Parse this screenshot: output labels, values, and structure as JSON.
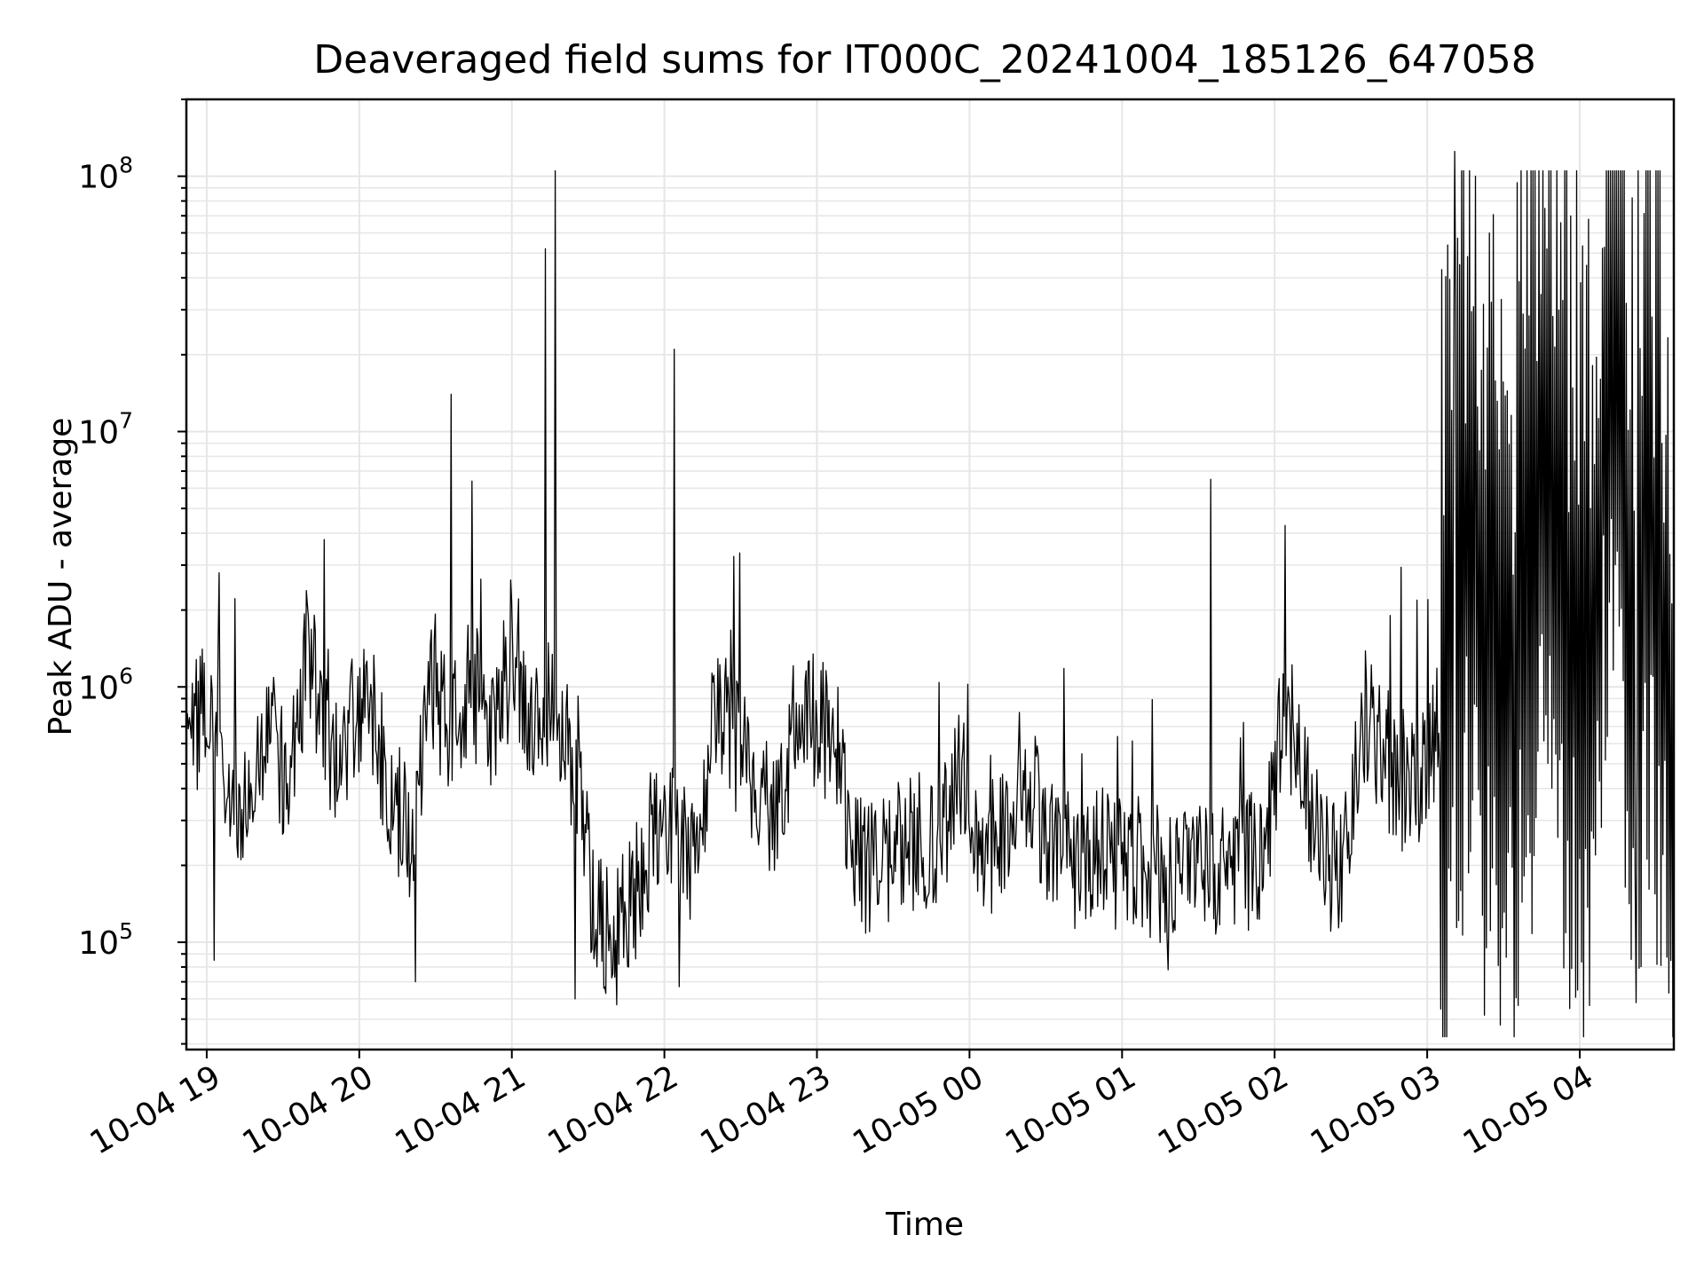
{
  "chart_data": {
    "type": "line",
    "title": "Deaveraged field sums for IT000C_20241004_185126_647058",
    "xlabel": "Time",
    "ylabel": "Peak ADU - average",
    "yscale": "log",
    "ylim": [
      38000,
      200000000
    ],
    "xlim": [
      "2024-10-04 18:52",
      "2024-10-05 04:37"
    ],
    "grid": true,
    "line_color": "#000000",
    "grid_color": "#e6e6e6",
    "x_ticks": [
      "10-04 19",
      "10-04 20",
      "10-04 21",
      "10-04 22",
      "10-04 23",
      "10-05 00",
      "10-05 01",
      "10-05 02",
      "10-05 03",
      "10-05 04"
    ],
    "y_ticks": [
      {
        "value": 100000,
        "base": "10",
        "exp": "5"
      },
      {
        "value": 1000000,
        "base": "10",
        "exp": "6"
      },
      {
        "value": 10000000,
        "base": "10",
        "exp": "7"
      },
      {
        "value": 100000000,
        "base": "10",
        "exp": "8"
      }
    ],
    "series": [
      {
        "x": [
          "2024-10-04 18:52",
          "2024-10-04 19:00",
          "2024-10-04 19:08",
          "2024-10-04 19:16",
          "2024-10-04 19:24",
          "2024-10-04 19:32",
          "2024-10-04 19:40",
          "2024-10-04 19:48",
          "2024-10-04 19:56",
          "2024-10-04 20:04",
          "2024-10-04 20:12",
          "2024-10-04 20:20",
          "2024-10-04 20:28",
          "2024-10-04 20:36",
          "2024-10-04 20:44",
          "2024-10-04 20:52",
          "2024-10-04 21:00",
          "2024-10-04 21:08",
          "2024-10-04 21:16",
          "2024-10-04 21:24",
          "2024-10-04 21:32",
          "2024-10-04 21:40",
          "2024-10-04 21:48",
          "2024-10-04 21:56",
          "2024-10-04 22:04",
          "2024-10-04 22:12",
          "2024-10-04 22:20",
          "2024-10-04 22:28",
          "2024-10-04 22:36",
          "2024-10-04 22:44",
          "2024-10-04 22:52",
          "2024-10-04 23:00",
          "2024-10-04 23:08",
          "2024-10-04 23:16",
          "2024-10-04 23:24",
          "2024-10-04 23:32",
          "2024-10-04 23:40",
          "2024-10-04 23:48",
          "2024-10-04 23:56",
          "2024-10-05 00:04",
          "2024-10-05 00:12",
          "2024-10-05 00:20",
          "2024-10-05 00:28",
          "2024-10-05 00:36",
          "2024-10-05 00:44",
          "2024-10-05 00:52",
          "2024-10-05 01:00",
          "2024-10-05 01:08",
          "2024-10-05 01:16",
          "2024-10-05 01:24",
          "2024-10-05 01:32",
          "2024-10-05 01:40",
          "2024-10-05 01:48",
          "2024-10-05 01:56",
          "2024-10-05 02:04",
          "2024-10-05 02:12",
          "2024-10-05 02:20",
          "2024-10-05 02:28",
          "2024-10-05 02:36",
          "2024-10-05 02:44",
          "2024-10-05 02:52",
          "2024-10-05 03:00",
          "2024-10-05 03:08",
          "2024-10-05 03:16",
          "2024-10-05 03:24",
          "2024-10-05 03:32",
          "2024-10-05 03:40",
          "2024-10-05 03:48",
          "2024-10-05 03:56",
          "2024-10-05 04:04",
          "2024-10-05 04:12",
          "2024-10-05 04:20",
          "2024-10-05 04:28",
          "2024-10-05 04:36"
        ],
        "y": [
          600000,
          900000,
          350000,
          300000,
          700000,
          400000,
          1500000,
          500000,
          700000,
          900000,
          400000,
          250000,
          900000,
          700000,
          1000000,
          700000,
          1200000,
          600000,
          1000000,
          500000,
          150000,
          100000,
          150000,
          300000,
          300000,
          200000,
          900000,
          600000,
          400000,
          300000,
          800000,
          700000,
          600000,
          200000,
          200000,
          250000,
          250000,
          220000,
          500000,
          220000,
          250000,
          500000,
          300000,
          220000,
          200000,
          230000,
          200000,
          200000,
          180000,
          200000,
          190000,
          180000,
          200000,
          220000,
          900000,
          400000,
          200000,
          220000,
          800000,
          500000,
          400000,
          500000,
          1000000,
          5000000,
          2000000,
          1000000,
          3000000,
          20000000,
          2000000,
          1000000,
          50000000,
          2000000,
          5000000,
          1000000
        ],
        "spikes": [
          {
            "x": "2024-10-04 19:05",
            "y": 2800000
          },
          {
            "x": "2024-10-04 20:36",
            "y": 14000000
          },
          {
            "x": "2024-10-04 21:13",
            "y": 52000000
          },
          {
            "x": "2024-10-04 21:17",
            "y": 105000000
          },
          {
            "x": "2024-10-04 22:04",
            "y": 21000000
          },
          {
            "x": "2024-10-05 01:35",
            "y": 6500000
          },
          {
            "x": "2024-10-05 03:11",
            "y": 125000000
          },
          {
            "x": "2024-10-05 03:55",
            "y": 105000000
          }
        ],
        "dips": [
          {
            "x": "2024-10-04 19:03",
            "y": 85000
          },
          {
            "x": "2024-10-04 20:22",
            "y": 70000
          },
          {
            "x": "2024-10-04 21:25",
            "y": 60000
          },
          {
            "x": "2024-10-04 21:36",
            "y": 66000
          },
          {
            "x": "2024-10-04 22:06",
            "y": 67000
          },
          {
            "x": "2024-10-05 01:18",
            "y": 78000
          },
          {
            "x": "2024-10-05 03:56",
            "y": 55000
          },
          {
            "x": "2024-10-05 04:22",
            "y": 58000
          }
        ]
      }
    ]
  }
}
